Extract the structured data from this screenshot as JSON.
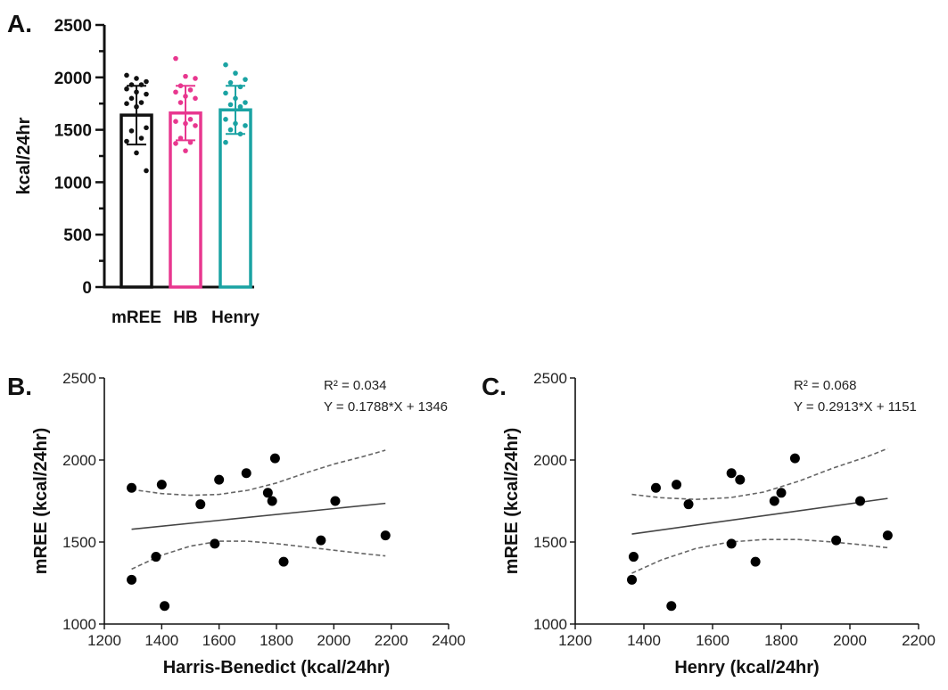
{
  "chart_data": [
    {
      "type": "bar",
      "panel_label": "A.",
      "ylabel": "kcal/24hr",
      "xlabel": "",
      "ylim": [
        0,
        2500
      ],
      "yticks": [
        "0",
        "500",
        "1000",
        "1500",
        "2000",
        "2500"
      ],
      "categories": [
        "mREE",
        "HB",
        "Henry"
      ],
      "values": [
        1640,
        1660,
        1690
      ],
      "sd": [
        280,
        260,
        230
      ],
      "colors": [
        "#111111",
        "#e8378f",
        "#1aa3a3"
      ],
      "points": [
        [
          2020,
          1990,
          1960,
          1930,
          1930,
          1890,
          1860,
          1840,
          1800,
          1760,
          1750,
          1720,
          1520,
          1490,
          1420,
          1390,
          1280,
          1110
        ],
        [
          2180,
          2010,
          1990,
          1920,
          1880,
          1860,
          1820,
          1800,
          1760,
          1600,
          1580,
          1560,
          1540,
          1420,
          1380,
          1370,
          1300
        ],
        [
          2120,
          2040,
          1980,
          1950,
          1910,
          1850,
          1800,
          1760,
          1740,
          1720,
          1600,
          1560,
          1540,
          1500,
          1460,
          1380
        ]
      ]
    },
    {
      "type": "scatter",
      "panel_label": "B.",
      "xlabel": "Harris-Benedict (kcal/24hr)",
      "ylabel": "mREE (kcal/24hr)",
      "xlim": [
        1200,
        2400
      ],
      "ylim": [
        1000,
        2500
      ],
      "xticks": [
        "1200",
        "1400",
        "1600",
        "1800",
        "2000",
        "2200",
        "2400"
      ],
      "yticks": [
        "1000",
        "1500",
        "2000",
        "2500"
      ],
      "annotation_r2": "R² = 0.034",
      "annotation_eq": "Y = 0.1788*X + 1346",
      "slope": 0.1788,
      "intercept": 1346,
      "points": [
        {
          "x": 1295,
          "y": 1830
        },
        {
          "x": 1400,
          "y": 1850
        },
        {
          "x": 1535,
          "y": 1730
        },
        {
          "x": 1600,
          "y": 1880
        },
        {
          "x": 1695,
          "y": 1920
        },
        {
          "x": 1795,
          "y": 2010
        },
        {
          "x": 1770,
          "y": 1800
        },
        {
          "x": 1785,
          "y": 1750
        },
        {
          "x": 2005,
          "y": 1750
        },
        {
          "x": 1295,
          "y": 1270
        },
        {
          "x": 1380,
          "y": 1410
        },
        {
          "x": 1410,
          "y": 1110
        },
        {
          "x": 1585,
          "y": 1490
        },
        {
          "x": 1825,
          "y": 1380
        },
        {
          "x": 1955,
          "y": 1510
        },
        {
          "x": 2180,
          "y": 1540
        }
      ],
      "ci_upper": [
        [
          1295,
          1820
        ],
        [
          1400,
          1795
        ],
        [
          1500,
          1785
        ],
        [
          1600,
          1790
        ],
        [
          1700,
          1815
        ],
        [
          1800,
          1860
        ],
        [
          1900,
          1920
        ],
        [
          2000,
          1975
        ],
        [
          2100,
          2020
        ],
        [
          2180,
          2060
        ]
      ],
      "ci_lower": [
        [
          1295,
          1335
        ],
        [
          1400,
          1420
        ],
        [
          1500,
          1475
        ],
        [
          1600,
          1505
        ],
        [
          1700,
          1505
        ],
        [
          1800,
          1490
        ],
        [
          1900,
          1470
        ],
        [
          2000,
          1450
        ],
        [
          2100,
          1430
        ],
        [
          2180,
          1415
        ]
      ]
    },
    {
      "type": "scatter",
      "panel_label": "C.",
      "xlabel": "Henry (kcal/24hr)",
      "ylabel": "mREE (kcal/24hr)",
      "xlim": [
        1200,
        2200
      ],
      "ylim": [
        1000,
        2500
      ],
      "xticks": [
        "1200",
        "1400",
        "1600",
        "1800",
        "2000",
        "2200"
      ],
      "yticks": [
        "1000",
        "1500",
        "2000",
        "2500"
      ],
      "annotation_r2": "R² = 0.068",
      "annotation_eq": "Y = 0.2913*X + 1151",
      "slope": 0.2913,
      "intercept": 1151,
      "points": [
        {
          "x": 1435,
          "y": 1830
        },
        {
          "x": 1495,
          "y": 1850
        },
        {
          "x": 1530,
          "y": 1730
        },
        {
          "x": 1655,
          "y": 1920
        },
        {
          "x": 1680,
          "y": 1880
        },
        {
          "x": 1840,
          "y": 2010
        },
        {
          "x": 1800,
          "y": 1800
        },
        {
          "x": 1780,
          "y": 1750
        },
        {
          "x": 2030,
          "y": 1750
        },
        {
          "x": 1365,
          "y": 1270
        },
        {
          "x": 1370,
          "y": 1410
        },
        {
          "x": 1480,
          "y": 1110
        },
        {
          "x": 1655,
          "y": 1490
        },
        {
          "x": 1725,
          "y": 1380
        },
        {
          "x": 1960,
          "y": 1510
        },
        {
          "x": 2110,
          "y": 1540
        }
      ],
      "ci_upper": [
        [
          1365,
          1790
        ],
        [
          1450,
          1770
        ],
        [
          1550,
          1760
        ],
        [
          1650,
          1770
        ],
        [
          1750,
          1805
        ],
        [
          1850,
          1870
        ],
        [
          1950,
          1950
        ],
        [
          2050,
          2020
        ],
        [
          2110,
          2070
        ]
      ],
      "ci_lower": [
        [
          1365,
          1310
        ],
        [
          1450,
          1390
        ],
        [
          1550,
          1460
        ],
        [
          1650,
          1500
        ],
        [
          1750,
          1515
        ],
        [
          1850,
          1515
        ],
        [
          1950,
          1500
        ],
        [
          2050,
          1480
        ],
        [
          2110,
          1465
        ]
      ]
    }
  ]
}
